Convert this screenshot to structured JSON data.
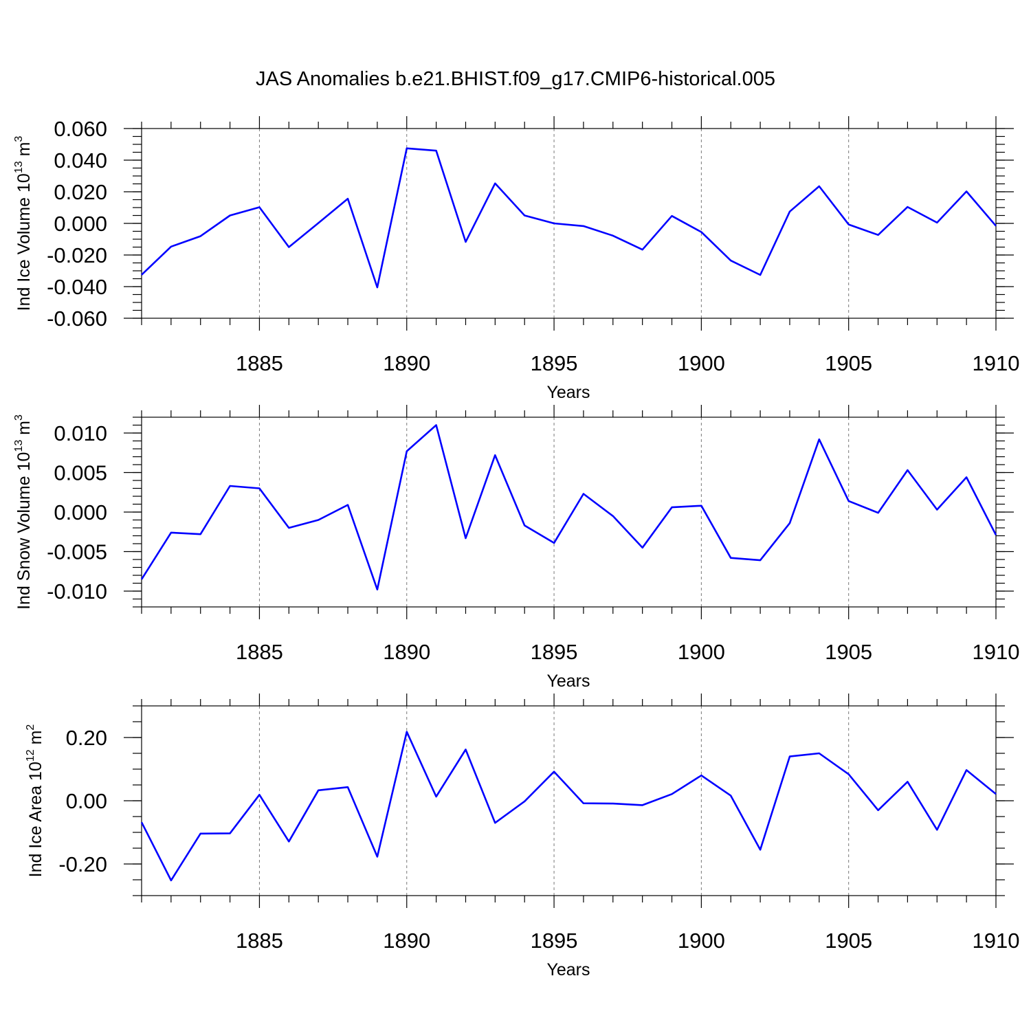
{
  "title": "JAS Anomalies b.e21.BHIST.f09_g17.CMIP6-historical.005",
  "line_color": "#0000ff",
  "chart_data": [
    {
      "type": "line",
      "xlabel": "Years",
      "ylabel": "Ind Ice Volume 10",
      "ylabel_exp": "13",
      "ylabel_unit": " m",
      "ylabel_unit_exp": "3",
      "xlim": [
        1881,
        1910
      ],
      "ylim": [
        -0.06,
        0.06
      ],
      "x_ticks": [
        1885,
        1890,
        1895,
        1900,
        1905,
        1910
      ],
      "x_tick_labels": [
        "1885",
        "1890",
        "1895",
        "1900",
        "1905",
        "1910"
      ],
      "y_ticks": [
        -0.06,
        -0.04,
        -0.02,
        0.0,
        0.02,
        0.04,
        0.06
      ],
      "y_tick_labels": [
        "-0.060",
        "-0.040",
        "-0.020",
        "0.000",
        "0.020",
        "0.040",
        "0.060"
      ],
      "y_minor_step": 0.005,
      "x": [
        1881,
        1882,
        1883,
        1884,
        1885,
        1886,
        1887,
        1888,
        1889,
        1890,
        1891,
        1892,
        1893,
        1894,
        1895,
        1896,
        1897,
        1898,
        1899,
        1900,
        1901,
        1902,
        1903,
        1904,
        1905,
        1906,
        1907,
        1908,
        1909,
        1910
      ],
      "values": [
        -0.0325,
        -0.0147,
        -0.0081,
        0.005,
        0.0102,
        -0.015,
        0.0002,
        0.0156,
        -0.0405,
        0.0475,
        0.046,
        -0.0117,
        0.0253,
        0.005,
        0.0,
        -0.0017,
        -0.0078,
        -0.0166,
        0.0047,
        -0.0055,
        -0.0235,
        -0.0326,
        0.0075,
        0.0235,
        -0.0007,
        -0.0073,
        0.0104,
        0.0005,
        0.0202,
        -0.0016
      ]
    },
    {
      "type": "line",
      "xlabel": "Years",
      "ylabel": "Ind Snow Volume 10",
      "ylabel_exp": "13",
      "ylabel_unit": " m",
      "ylabel_unit_exp": "3",
      "xlim": [
        1881,
        1910
      ],
      "ylim": [
        -0.012,
        0.012
      ],
      "x_ticks": [
        1885,
        1890,
        1895,
        1900,
        1905,
        1910
      ],
      "x_tick_labels": [
        "1885",
        "1890",
        "1895",
        "1900",
        "1905",
        "1910"
      ],
      "y_ticks": [
        -0.01,
        -0.005,
        0.0,
        0.005,
        0.01
      ],
      "y_tick_labels": [
        "-0.010",
        "-0.005",
        "0.000",
        "0.005",
        "0.010"
      ],
      "y_minor_step": 0.001,
      "x": [
        1881,
        1882,
        1883,
        1884,
        1885,
        1886,
        1887,
        1888,
        1889,
        1890,
        1891,
        1892,
        1893,
        1894,
        1895,
        1896,
        1897,
        1898,
        1899,
        1900,
        1901,
        1902,
        1903,
        1904,
        1905,
        1906,
        1907,
        1908,
        1909,
        1910
      ],
      "values": [
        -0.0085,
        -0.0026,
        -0.0028,
        0.0033,
        0.003,
        -0.002,
        -0.001,
        0.0009,
        -0.0098,
        0.0077,
        0.011,
        -0.0033,
        0.0072,
        -0.0017,
        -0.0039,
        0.0023,
        -0.0005,
        -0.0045,
        0.0006,
        0.0008,
        -0.0058,
        -0.0061,
        -0.0014,
        0.0092,
        0.0014,
        -0.0001,
        0.0053,
        0.0003,
        0.0044,
        -0.0029
      ]
    },
    {
      "type": "line",
      "xlabel": "Years",
      "ylabel": "Ind Ice Area 10",
      "ylabel_exp": "12",
      "ylabel_unit": " m",
      "ylabel_unit_exp": "2",
      "xlim": [
        1881,
        1910
      ],
      "ylim": [
        -0.3,
        0.3
      ],
      "x_ticks": [
        1885,
        1890,
        1895,
        1900,
        1905,
        1910
      ],
      "x_tick_labels": [
        "1885",
        "1890",
        "1895",
        "1900",
        "1905",
        "1910"
      ],
      "y_ticks": [
        -0.2,
        0.0,
        0.2
      ],
      "y_tick_labels": [
        "-0.20",
        "0.00",
        "0.20"
      ],
      "y_minor_step": 0.05,
      "x": [
        1881,
        1882,
        1883,
        1884,
        1885,
        1886,
        1887,
        1888,
        1889,
        1890,
        1891,
        1892,
        1893,
        1894,
        1895,
        1896,
        1897,
        1898,
        1899,
        1900,
        1901,
        1902,
        1903,
        1904,
        1905,
        1906,
        1907,
        1908,
        1909,
        1910
      ],
      "values": [
        -0.068,
        -0.252,
        -0.104,
        -0.103,
        0.019,
        -0.129,
        0.033,
        0.043,
        -0.177,
        0.218,
        0.013,
        0.162,
        -0.07,
        -0.002,
        0.092,
        -0.008,
        -0.009,
        -0.014,
        0.021,
        0.08,
        0.016,
        -0.155,
        0.14,
        0.15,
        0.084,
        -0.03,
        0.06,
        -0.092,
        0.097,
        0.021
      ]
    }
  ]
}
